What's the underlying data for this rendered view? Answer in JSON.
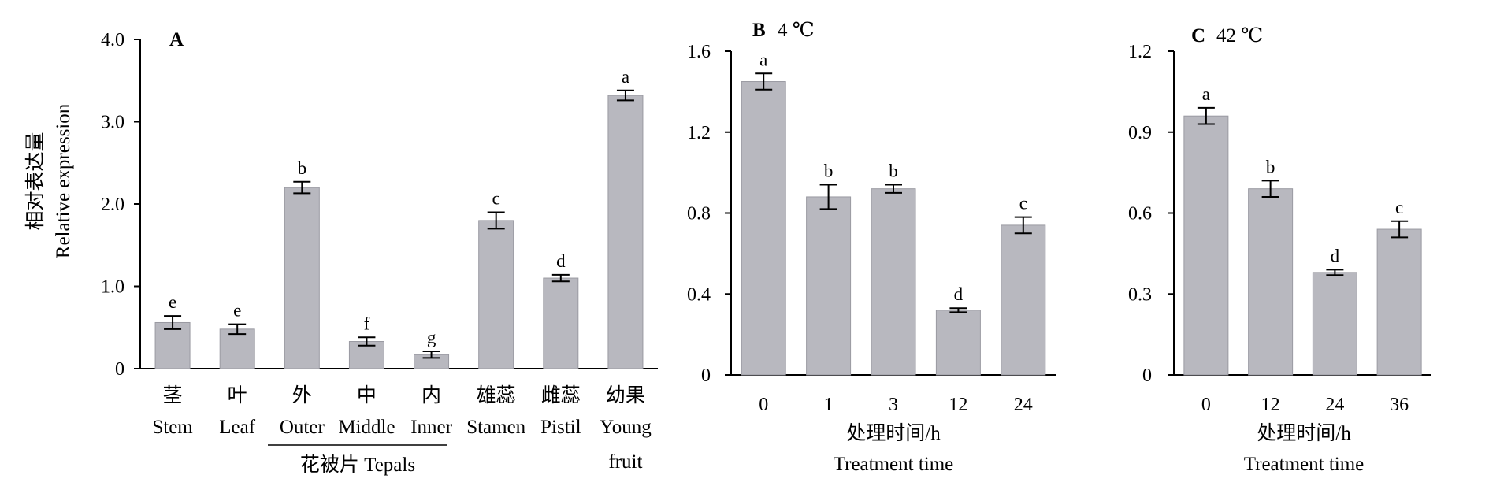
{
  "figure": {
    "tepals_group_label": "花被片 Tepals"
  },
  "chart_data": [
    {
      "type": "bar",
      "title": "A",
      "ylabel_cn": "相对表达量",
      "ylabel": "Relative expression",
      "ylim": [
        0,
        4
      ],
      "yticks": [
        "0",
        "1.0",
        "2.0",
        "3.0",
        "4.0"
      ],
      "categories": [
        {
          "cn": "茎",
          "en": "Stem"
        },
        {
          "cn": "叶",
          "en": "Leaf"
        },
        {
          "cn": "外",
          "en": "Outer"
        },
        {
          "cn": "中",
          "en": "Middle"
        },
        {
          "cn": "内",
          "en": "Inner"
        },
        {
          "cn": "雄蕊",
          "en": "Stamen"
        },
        {
          "cn": "雌蕊",
          "en": "Pistil"
        },
        {
          "cn": "幼果",
          "en": "Young",
          "en2": "fruit"
        }
      ],
      "values": [
        0.56,
        0.48,
        2.2,
        0.33,
        0.17,
        1.8,
        1.1,
        3.32
      ],
      "errors": [
        0.08,
        0.06,
        0.07,
        0.05,
        0.04,
        0.1,
        0.04,
        0.06
      ],
      "letters": [
        "e",
        "e",
        "b",
        "f",
        "g",
        "c",
        "d",
        "a"
      ],
      "bar_color": "#b8b8bf"
    },
    {
      "type": "bar",
      "title": "B",
      "title_extra": "4 ℃",
      "xlabel_cn": "处理时间/h",
      "xlabel": "Treatment time",
      "ylim": [
        0,
        1.6
      ],
      "yticks": [
        "0",
        "0.4",
        "0.8",
        "1.2",
        "1.6"
      ],
      "categories": [
        "0",
        "1",
        "3",
        "12",
        "24"
      ],
      "values": [
        1.45,
        0.88,
        0.92,
        0.32,
        0.74
      ],
      "errors": [
        0.04,
        0.06,
        0.02,
        0.01,
        0.04
      ],
      "letters": [
        "a",
        "b",
        "b",
        "d",
        "c"
      ],
      "bar_color": "#b8b8bf"
    },
    {
      "type": "bar",
      "title": "C",
      "title_extra": "42 ℃",
      "xlabel_cn": "处理时间/h",
      "xlabel": "Treatment time",
      "ylim": [
        0,
        1.2
      ],
      "yticks": [
        "0",
        "0.3",
        "0.6",
        "0.9",
        "1.2"
      ],
      "categories": [
        "0",
        "12",
        "24",
        "36"
      ],
      "values": [
        0.96,
        0.69,
        0.38,
        0.54
      ],
      "errors": [
        0.03,
        0.03,
        0.01,
        0.03
      ],
      "letters": [
        "a",
        "b",
        "d",
        "c"
      ],
      "bar_color": "#b8b8bf"
    }
  ]
}
